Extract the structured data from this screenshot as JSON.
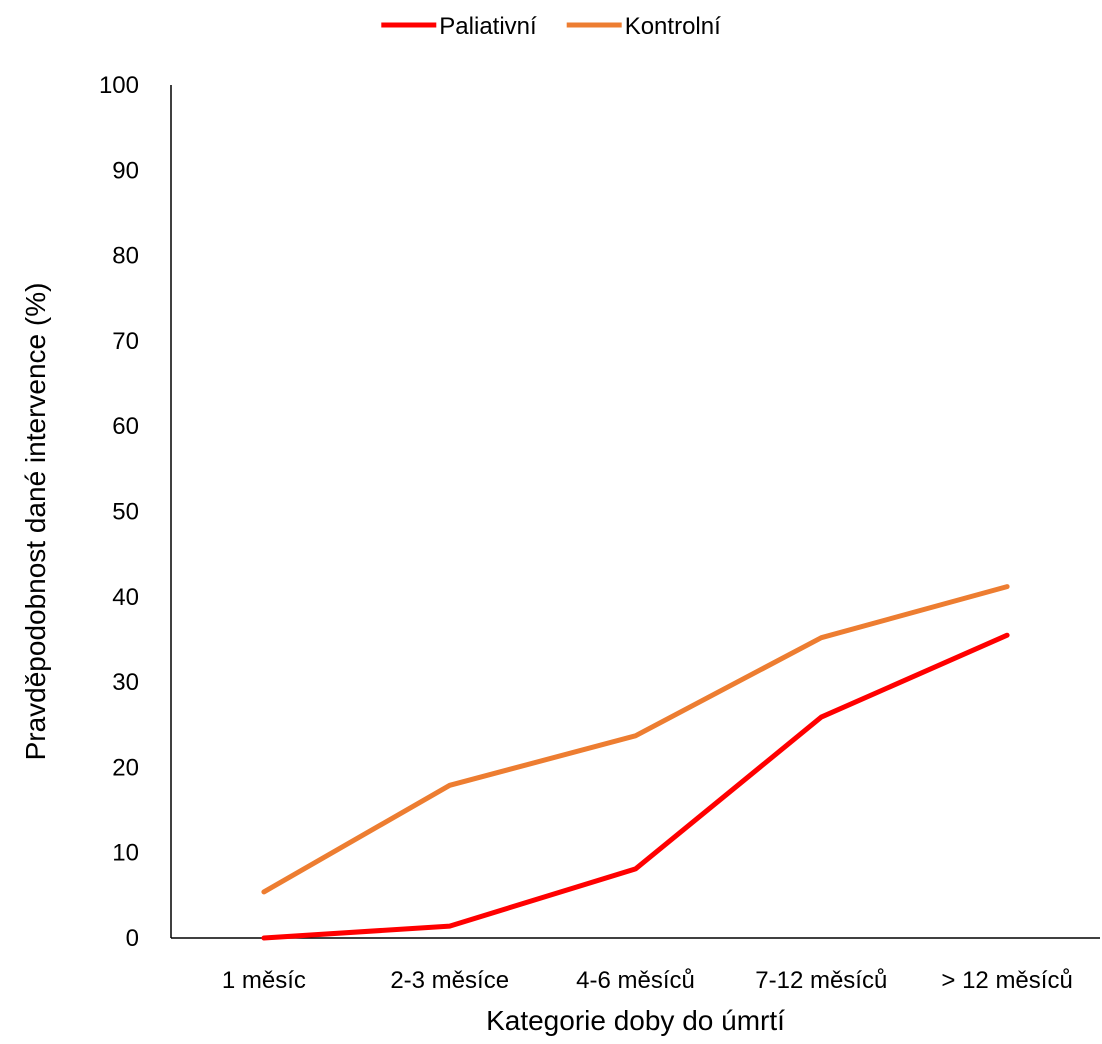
{
  "chart_data": {
    "type": "line",
    "xlabel": "Kategorie doby do úmrtí",
    "ylabel": "Pravděpodobnost dané intervence (%)",
    "categories": [
      "1 měsíc",
      "2-3 měsíce",
      "4-6 měsíců",
      "7-12 měsíců",
      "> 12 měsíců"
    ],
    "ylim": [
      0,
      100
    ],
    "yticks": [
      0,
      10,
      20,
      30,
      40,
      50,
      60,
      70,
      80,
      90,
      100
    ],
    "grid": false,
    "legend_position": "top",
    "series": [
      {
        "name": "Paliativní",
        "color": "#ff0000",
        "values": [
          0.0,
          1.4,
          8.1,
          25.9,
          35.5
        ]
      },
      {
        "name": "Kontrolní",
        "color": "#ed7d31",
        "values": [
          5.4,
          17.9,
          23.7,
          35.2,
          41.2
        ]
      }
    ]
  }
}
